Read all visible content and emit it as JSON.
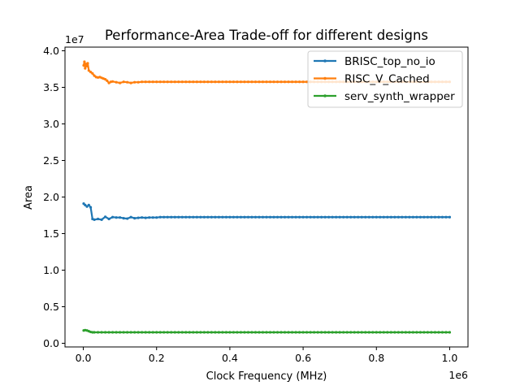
{
  "chart_data": {
    "type": "line",
    "title": "Performance-Area Trade-off for different designs",
    "xlabel": "Clock Frequency (MHz)",
    "ylabel": "Area",
    "x_offset_text": "1e6",
    "y_offset_text": "1e7",
    "xlim": [
      -50000,
      1050000
    ],
    "ylim": [
      -0.5,
      40.5
    ],
    "x_ticks": [
      0,
      200000,
      400000,
      600000,
      800000,
      1000000
    ],
    "x_tick_labels": [
      "0.0",
      "0.2",
      "0.4",
      "0.6",
      "0.8",
      "1.0"
    ],
    "y_ticks": [
      0,
      5,
      10,
      15,
      20,
      25,
      30,
      35,
      40
    ],
    "y_tick_labels": [
      "0.0",
      "0.5",
      "1.0",
      "1.5",
      "2.0",
      "2.5",
      "3.0",
      "3.5",
      "4.0"
    ],
    "grid": false,
    "legend_position": "top-right",
    "series": [
      {
        "name": "BRISC_top_no_io",
        "color": "#1f77b4",
        "x": [
          1000,
          5000,
          10000,
          15000,
          20000,
          25000,
          30000,
          40000,
          50000,
          60000,
          70000,
          80000,
          90000,
          100000,
          110000,
          120000,
          130000,
          140000,
          150000,
          160000,
          170000,
          180000,
          190000,
          200000,
          210000,
          220000
        ],
        "y": [
          19.1,
          18.9,
          18.7,
          18.9,
          18.6,
          17.0,
          16.9,
          17.0,
          16.9,
          17.3,
          17.0,
          17.25,
          17.2,
          17.2,
          17.1,
          17.05,
          17.25,
          17.1,
          17.15,
          17.2,
          17.15,
          17.2,
          17.2,
          17.2,
          17.25,
          17.25
        ],
        "tail": {
          "from": 230000,
          "to": 1000000,
          "step": 10000,
          "value": 17.25
        }
      },
      {
        "name": "RISC_V_Cached",
        "color": "#ff7f0e",
        "x": [
          1000,
          3000,
          5000,
          7000,
          10000,
          12000,
          15000,
          20000,
          25000,
          30000,
          35000,
          40000,
          45000,
          50000,
          55000,
          60000,
          65000,
          70000,
          75000,
          80000,
          90000,
          100000,
          110000,
          120000,
          130000,
          140000,
          150000,
          160000
        ],
        "y": [
          38.0,
          38.5,
          37.6,
          38.2,
          37.9,
          38.3,
          37.3,
          37.1,
          36.9,
          36.6,
          36.4,
          36.35,
          36.4,
          36.3,
          36.2,
          36.1,
          35.9,
          35.6,
          35.75,
          35.8,
          35.7,
          35.6,
          35.75,
          35.7,
          35.6,
          35.7,
          35.7,
          35.75
        ],
        "tail": {
          "from": 170000,
          "to": 1000000,
          "step": 10000,
          "value": 35.75
        }
      },
      {
        "name": "serv_synth_wrapper",
        "color": "#2ca02c",
        "x": [
          1000,
          5000,
          10000,
          15000,
          20000,
          25000,
          30000
        ],
        "y": [
          1.75,
          1.8,
          1.75,
          1.65,
          1.55,
          1.5,
          1.5
        ],
        "tail": {
          "from": 40000,
          "to": 1000000,
          "step": 10000,
          "value": 1.5
        }
      }
    ]
  }
}
